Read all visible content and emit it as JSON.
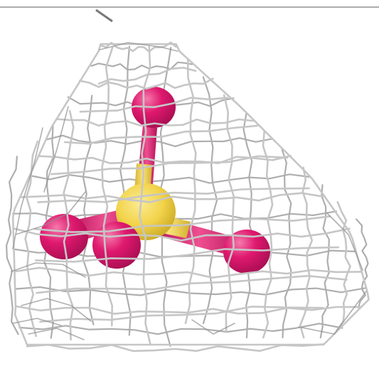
{
  "scene": {
    "background": "#ffffff",
    "mesh_color": "#c6c6c6",
    "mesh_shadow_color": "#8e8e8e",
    "central_atom_color": "#f2d34a",
    "ligand_atom_color": "#e0196f",
    "atoms": [
      {
        "name": "central-atom",
        "element": "sulfur-like",
        "color": "#f2d34a"
      },
      {
        "name": "ligand-atom-top",
        "element": "oxygen-like",
        "color": "#e0196f"
      },
      {
        "name": "ligand-atom-left",
        "element": "oxygen-like",
        "color": "#e0196f"
      },
      {
        "name": "ligand-atom-front",
        "element": "oxygen-like",
        "color": "#e0196f"
      },
      {
        "name": "ligand-atom-right",
        "element": "oxygen-like",
        "color": "#e0196f"
      }
    ]
  }
}
